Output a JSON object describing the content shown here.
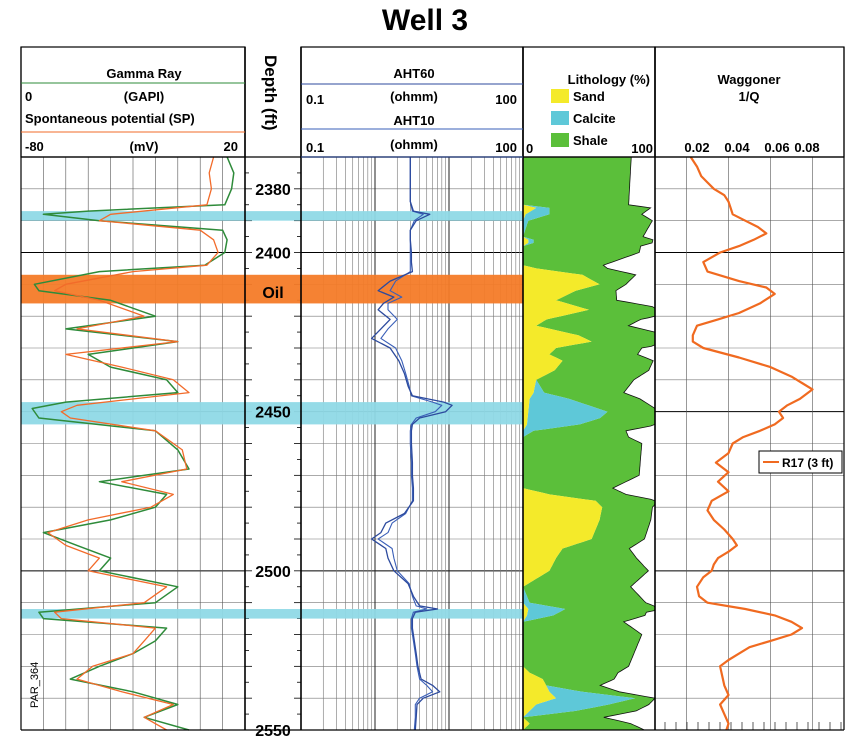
{
  "title": "Well 3",
  "watermark": "PAR_364",
  "colors": {
    "sp": "#2e8b3a",
    "gr": "#f26b2a",
    "aht60": "#2c4a9e",
    "aht10": "#3a5fb8",
    "sand": "#f4ea2a",
    "calcite": "#5ec8d8",
    "shale": "#5bbf3a",
    "calcite_band": "#8fd9e6",
    "oil_band": "#f47b28",
    "waggoner": "#f06a20"
  },
  "track1": {
    "title": "Gamma Ray",
    "gr_min": "0",
    "gr_unit": "(GAPI)",
    "sp_title": "Spontaneous potential (SP)",
    "sp_min": "-80",
    "sp_unit": "(mV)",
    "sp_max": "20"
  },
  "depth_track": {
    "title": "Depth (ft)",
    "ticks": [
      "2380",
      "2400",
      "2450",
      "2500",
      "2550"
    ],
    "oil_label": "Oil"
  },
  "track2": {
    "aht60_title": "AHT60",
    "aht60_min": "0.1",
    "aht60_unit": "(ohmm)",
    "aht60_max": "100",
    "aht10_title": "AHT10",
    "aht10_min": "0.1",
    "aht10_unit": "(ohmm)",
    "aht10_max": "100"
  },
  "track3": {
    "title": "Lithology (%)",
    "min": "0",
    "max": "100",
    "legend": [
      "Sand",
      "Calcite",
      "Shale"
    ]
  },
  "track4": {
    "title": "Waggoner",
    "subtitle": "1/Q",
    "ticks": [
      "0.02",
      "0.04",
      "0.06",
      "0.08"
    ],
    "legend": "R17 (3 ft)"
  },
  "chart_data": {
    "type": "line",
    "title": "Well 3",
    "y_axis": {
      "label": "Depth (ft)",
      "range": [
        2370,
        2550
      ],
      "inverted": true,
      "ticks": [
        2380,
        2400,
        2450,
        2500,
        2550
      ]
    },
    "highlight_bands": [
      {
        "label": "Calcite",
        "depth": [
          2387,
          2390
        ]
      },
      {
        "label": "Oil",
        "depth": [
          2407,
          2416
        ]
      },
      {
        "label": "Calcite",
        "depth": [
          2447,
          2454
        ]
      },
      {
        "label": "Calcite",
        "depth": [
          2512,
          2515
        ]
      }
    ],
    "tracks": [
      {
        "name": "Gamma Ray / Spontaneous potential (SP)",
        "x_scale": "linear",
        "x_range": [
          -80,
          20
        ],
        "series": [
          {
            "name": "Spontaneous potential (SP)",
            "depth": [
              2370,
              2375,
              2380,
              2385,
              2387,
              2388,
              2390,
              2393,
              2396,
              2400,
              2404,
              2406,
              2410,
              2412,
              2415,
              2420,
              2424,
              2428,
              2432,
              2436,
              2440,
              2444,
              2447,
              2449,
              2452,
              2456,
              2462,
              2468,
              2472,
              2476,
              2480,
              2484,
              2488,
              2492,
              2496,
              2500,
              2505,
              2510,
              2513,
              2515,
              2518,
              2522,
              2526,
              2530,
              2534,
              2538,
              2542,
              2546,
              2550
            ],
            "values": [
              12,
              15,
              14,
              11,
              -50,
              -70,
              -45,
              10,
              12,
              11,
              2,
              -45,
              -74,
              -72,
              -40,
              -20,
              -60,
              -10,
              -50,
              -40,
              -15,
              -10,
              -60,
              -75,
              -72,
              -20,
              -10,
              -5,
              -45,
              -15,
              -20,
              -40,
              -70,
              -55,
              -40,
              -45,
              -10,
              -20,
              -72,
              -70,
              -15,
              -20,
              -30,
              -45,
              -58,
              -30,
              -10,
              -25,
              -5
            ]
          },
          {
            "name": "Gamma Ray",
            "depth": [
              2370,
              2375,
              2380,
              2385,
              2388,
              2390,
              2393,
              2396,
              2400,
              2404,
              2406,
              2410,
              2412,
              2415,
              2420,
              2424,
              2428,
              2432,
              2436,
              2440,
              2444,
              2448,
              2450,
              2452,
              2456,
              2462,
              2468,
              2472,
              2476,
              2480,
              2484,
              2488,
              2492,
              2496,
              2500,
              2505,
              2510,
              2513,
              2515,
              2518,
              2522,
              2526,
              2530,
              2534,
              2538,
              2542,
              2546,
              2550
            ],
            "values": [
              6,
              4,
              5,
              3,
              -40,
              -45,
              0,
              6,
              8,
              3,
              -30,
              -60,
              -65,
              -45,
              -25,
              -55,
              -10,
              -60,
              -35,
              -12,
              -5,
              -55,
              -62,
              -58,
              -20,
              -8,
              -6,
              -35,
              -12,
              -22,
              -50,
              -68,
              -60,
              -45,
              -50,
              -15,
              -25,
              -65,
              -62,
              -20,
              -25,
              -30,
              -48,
              -55,
              -35,
              -12,
              -25,
              -15
            ]
          }
        ]
      },
      {
        "name": "Resistivity (ohmm)",
        "x_scale": "log",
        "x_range": [
          0.1,
          100
        ],
        "series": [
          {
            "name": "AHT60",
            "depth": [
              2370,
              2375,
              2380,
              2384,
              2387,
              2388,
              2390,
              2393,
              2396,
              2400,
              2403,
              2406,
              2409,
              2412,
              2414,
              2416,
              2418,
              2421,
              2424,
              2427,
              2430,
              2434,
              2438,
              2442,
              2445,
              2447,
              2448,
              2450,
              2452,
              2454,
              2456,
              2460,
              2466,
              2470,
              2474,
              2478,
              2482,
              2485,
              2488,
              2490,
              2493,
              2496,
              2500,
              2504,
              2508,
              2511,
              2512,
              2513,
              2515,
              2518,
              2522,
              2526,
              2530,
              2534,
              2536,
              2538,
              2540,
              2542,
              2546,
              2550
            ],
            "values": [
              3,
              3,
              3,
              3,
              3.3,
              5.5,
              3.6,
              3,
              3,
              3.1,
              3.1,
              3.2,
              1.6,
              1.1,
              1.8,
              1.3,
              1.1,
              1.6,
              1.2,
              0.9,
              1.6,
              2.1,
              2.5,
              2.8,
              3.2,
              8.5,
              11,
              9,
              4,
              3.2,
              3.1,
              3.1,
              3.2,
              3.2,
              3.3,
              3.3,
              2.5,
              1.4,
              1.2,
              0.9,
              1.4,
              1.5,
              1.8,
              2.8,
              3.3,
              4,
              7,
              3.5,
              3.2,
              3.2,
              3.4,
              3.6,
              3.8,
              4.2,
              6,
              7.5,
              4.5,
              3.7,
              3.6,
              3.5
            ]
          },
          {
            "name": "AHT10",
            "depth": [
              2370,
              2375,
              2380,
              2384,
              2387,
              2388,
              2390,
              2393,
              2396,
              2400,
              2403,
              2406,
              2409,
              2412,
              2414,
              2416,
              2418,
              2421,
              2424,
              2427,
              2430,
              2434,
              2438,
              2442,
              2445,
              2447,
              2448,
              2450,
              2452,
              2454,
              2456,
              2460,
              2466,
              2470,
              2474,
              2478,
              2482,
              2485,
              2488,
              2490,
              2493,
              2496,
              2500,
              2504,
              2508,
              2511,
              2512,
              2513,
              2515,
              2518,
              2522,
              2526,
              2530,
              2534,
              2536,
              2538,
              2540,
              2542,
              2546,
              2550
            ],
            "values": [
              3,
              3,
              3,
              3,
              3.2,
              4.5,
              3.4,
              3,
              3,
              3,
              3,
              3,
              1.9,
              1.6,
              2.3,
              1.5,
              1.5,
              2,
              1.5,
              1.2,
              1.9,
              2.3,
              2.6,
              2.9,
              3.1,
              6,
              8,
              6.5,
              3.6,
              3.1,
              3,
              3,
              3.1,
              3.1,
              3.2,
              3.2,
              2.6,
              1.7,
              1.5,
              1.1,
              1.7,
              1.8,
              2,
              2.9,
              3.2,
              3.6,
              5,
              3.3,
              3.1,
              3.1,
              3.3,
              3.5,
              3.7,
              4,
              5,
              6,
              4,
              3.5,
              3.5,
              3.4
            ]
          }
        ]
      },
      {
        "name": "Lithology (%)",
        "x_range": [
          0,
          100
        ],
        "type": "area",
        "series": [
          {
            "name": "Sand",
            "depth": [
              2370,
              2385,
              2386,
              2388,
              2390,
              2395,
              2396,
              2397,
              2398,
              2404,
              2405,
              2407,
              2410,
              2412,
              2415,
              2418,
              2421,
              2423,
              2426,
              2428,
              2430,
              2432,
              2434,
              2437,
              2440,
              2444,
              2446,
              2450,
              2454,
              2456,
              2458,
              2464,
              2470,
              2474,
              2476,
              2478,
              2480,
              2484,
              2487,
              2490,
              2493,
              2496,
              2500,
              2505,
              2510,
              2512,
              2514,
              2516,
              2520,
              2525,
              2530,
              2532,
              2534,
              2538,
              2540,
              2542,
              2546,
              2548,
              2550
            ],
            "values": [
              0,
              0,
              10,
              2,
              0,
              0,
              4,
              4,
              0,
              0,
              10,
              45,
              58,
              40,
              25,
              50,
              18,
              10,
              42,
              52,
              25,
              20,
              30,
              24,
              10,
              8,
              5,
              4,
              3,
              0,
              0,
              0,
              0,
              0,
              20,
              55,
              60,
              58,
              55,
              52,
              30,
              25,
              20,
              0,
              0,
              4,
              3,
              0,
              0,
              0,
              0,
              5,
              15,
              20,
              25,
              10,
              0,
              5,
              0
            ]
          },
          {
            "name": "Calcite",
            "depth": [
              2370,
              2385,
              2386,
              2388,
              2390,
              2395,
              2396,
              2397,
              2398,
              2404,
              2440,
              2444,
              2446,
              2448,
              2450,
              2452,
              2454,
              2456,
              2458,
              2500,
              2505,
              2510,
              2512,
              2514,
              2516,
              2536,
              2538,
              2540,
              2542,
              2544,
              2546,
              2550
            ],
            "values": [
              0,
              0,
              10,
              18,
              4,
              0,
              4,
              4,
              0,
              0,
              0,
              8,
              30,
              45,
              60,
              55,
              40,
              8,
              0,
              0,
              0,
              5,
              28,
              20,
              0,
              0,
              25,
              60,
              55,
              35,
              0,
              0
            ]
          },
          {
            "name": "Shale",
            "depth": [
              2370,
              2385,
              2388,
              2390,
              2400,
              2410,
              2420,
              2430,
              2440,
              2450,
              2460,
              2470,
              2480,
              2490,
              2500,
              2510,
              2513,
              2520,
              2530,
              2540,
              2550
            ],
            "values": [
              82,
              80,
              70,
              94,
              88,
              20,
              72,
              65,
              74,
              40,
              90,
              88,
              38,
              40,
              75,
              88,
              66,
              90,
              80,
              15,
              92
            ]
          }
        ]
      },
      {
        "name": "Waggoner 1/Q",
        "x_range": [
          0.005,
          0.095
        ],
        "series": [
          {
            "name": "R17 (3 ft)",
            "depth": [
              2370,
              2373,
              2376,
              2378,
              2380,
              2382,
              2384,
              2386,
              2388,
              2390,
              2392,
              2394,
              2396,
              2398,
              2400,
              2403,
              2406,
              2409,
              2411,
              2413,
              2416,
              2419,
              2421,
              2423,
              2426,
              2428,
              2430,
              2433,
              2436,
              2439,
              2441,
              2443,
              2446,
              2448,
              2450,
              2452,
              2454,
              2456,
              2458,
              2460,
              2463,
              2466,
              2469,
              2472,
              2475,
              2478,
              2481,
              2484,
              2487,
              2490,
              2492,
              2494,
              2496,
              2498,
              2500,
              2502,
              2505,
              2508,
              2510,
              2512,
              2514,
              2516,
              2518,
              2520,
              2522,
              2524,
              2526,
              2528,
              2530,
              2533,
              2536,
              2539,
              2542,
              2545,
              2548,
              2550
            ],
            "values": [
              0.022,
              0.025,
              0.027,
              0.03,
              0.033,
              0.038,
              0.04,
              0.041,
              0.042,
              0.048,
              0.054,
              0.058,
              0.052,
              0.045,
              0.036,
              0.028,
              0.03,
              0.045,
              0.058,
              0.062,
              0.055,
              0.045,
              0.035,
              0.025,
              0.023,
              0.023,
              0.028,
              0.045,
              0.06,
              0.07,
              0.075,
              0.08,
              0.074,
              0.068,
              0.064,
              0.066,
              0.062,
              0.055,
              0.047,
              0.042,
              0.04,
              0.034,
              0.04,
              0.035,
              0.04,
              0.032,
              0.03,
              0.033,
              0.038,
              0.042,
              0.044,
              0.04,
              0.035,
              0.033,
              0.032,
              0.028,
              0.025,
              0.026,
              0.03,
              0.048,
              0.062,
              0.07,
              0.075,
              0.07,
              0.06,
              0.05,
              0.045,
              0.04,
              0.036,
              0.037,
              0.038,
              0.04,
              0.036,
              0.038,
              0.04,
              0.039
            ]
          }
        ]
      }
    ]
  }
}
